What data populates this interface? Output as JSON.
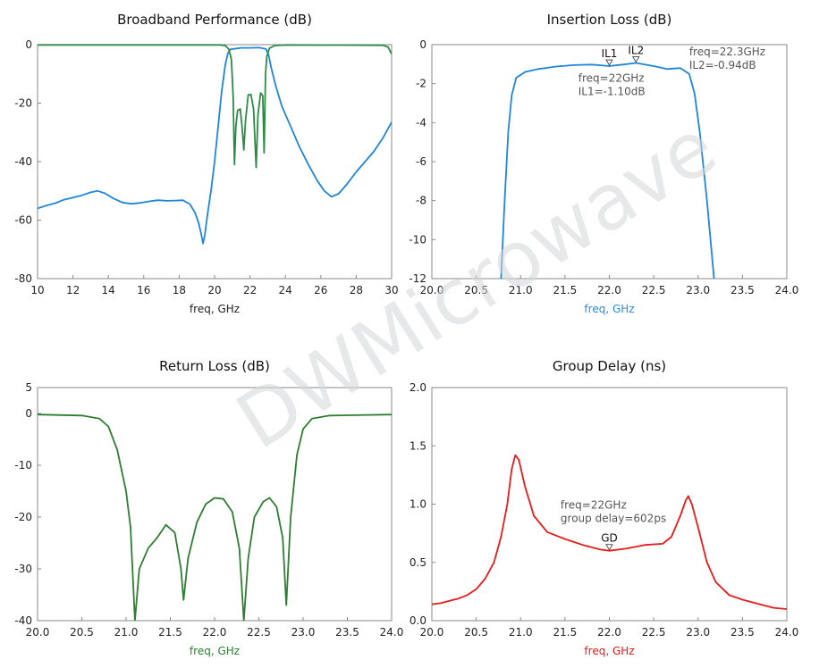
{
  "watermark": {
    "text": "DWMicrowave"
  },
  "chart_data": [
    {
      "type": "line",
      "title": "Broadband Performance (dB)",
      "xlabel": "freq, GHz",
      "xlabel_color": "#222222",
      "xlim": [
        10,
        30
      ],
      "ylim": [
        -80,
        0
      ],
      "xticks": [
        10,
        12,
        14,
        16,
        18,
        20,
        22,
        24,
        26,
        28,
        30
      ],
      "yticks": [
        0,
        -20,
        -40,
        -60,
        -80
      ],
      "grid": false,
      "series": [
        {
          "color": "#1f86d9",
          "points": [
            [
              10,
              -56
            ],
            [
              10.5,
              -55
            ],
            [
              11,
              -54.2
            ],
            [
              11.5,
              -53
            ],
            [
              12,
              -52.3
            ],
            [
              12.5,
              -51.5
            ],
            [
              13,
              -50.5
            ],
            [
              13.4,
              -50
            ],
            [
              13.8,
              -50.8
            ],
            [
              14.3,
              -52.6
            ],
            [
              14.8,
              -54
            ],
            [
              15.3,
              -54.4
            ],
            [
              15.8,
              -54.1
            ],
            [
              16.3,
              -53.6
            ],
            [
              16.8,
              -53.2
            ],
            [
              17.3,
              -53.4
            ],
            [
              17.8,
              -53.3
            ],
            [
              18.2,
              -53.2
            ],
            [
              18.6,
              -54.5
            ],
            [
              18.9,
              -57.5
            ],
            [
              19.1,
              -61
            ],
            [
              19.25,
              -65
            ],
            [
              19.35,
              -68
            ],
            [
              19.45,
              -65
            ],
            [
              19.6,
              -58
            ],
            [
              19.8,
              -50
            ],
            [
              20.0,
              -40
            ],
            [
              20.2,
              -28
            ],
            [
              20.4,
              -16
            ],
            [
              20.6,
              -7
            ],
            [
              20.75,
              -3
            ],
            [
              20.9,
              -1.6
            ],
            [
              21.5,
              -1.1
            ],
            [
              22.0,
              -1.1
            ],
            [
              22.5,
              -1.0
            ],
            [
              22.9,
              -1.5
            ],
            [
              23.05,
              -3.5
            ],
            [
              23.2,
              -8
            ],
            [
              23.45,
              -14
            ],
            [
              23.8,
              -21
            ],
            [
              24.3,
              -28
            ],
            [
              24.8,
              -35
            ],
            [
              25.3,
              -41
            ],
            [
              25.8,
              -46.5
            ],
            [
              26.2,
              -50
            ],
            [
              26.6,
              -52
            ],
            [
              27.0,
              -51
            ],
            [
              27.5,
              -47.5
            ],
            [
              28.0,
              -43.5
            ],
            [
              28.5,
              -40
            ],
            [
              29.0,
              -36.5
            ],
            [
              29.5,
              -32
            ],
            [
              30,
              -26.5
            ]
          ]
        },
        {
          "color": "#2e8b45",
          "points": [
            [
              10,
              -0.1
            ],
            [
              20.3,
              -0.1
            ],
            [
              20.6,
              -0.3
            ],
            [
              20.8,
              -1.5
            ],
            [
              20.95,
              -5
            ],
            [
              21.05,
              -18
            ],
            [
              21.12,
              -41
            ],
            [
              21.2,
              -28
            ],
            [
              21.3,
              -22.5
            ],
            [
              21.45,
              -22
            ],
            [
              21.55,
              -28
            ],
            [
              21.65,
              -36
            ],
            [
              21.75,
              -26
            ],
            [
              21.9,
              -17.2
            ],
            [
              22.05,
              -17
            ],
            [
              22.2,
              -22
            ],
            [
              22.35,
              -42
            ],
            [
              22.45,
              -24
            ],
            [
              22.6,
              -16.5
            ],
            [
              22.72,
              -17.5
            ],
            [
              22.8,
              -37
            ],
            [
              22.88,
              -10
            ],
            [
              22.95,
              -4
            ],
            [
              23.1,
              -1.2
            ],
            [
              23.4,
              -0.3
            ],
            [
              24,
              -0.1
            ],
            [
              29.5,
              -0.2
            ],
            [
              29.8,
              -0.8
            ],
            [
              30,
              -3.2
            ]
          ]
        }
      ]
    },
    {
      "type": "line",
      "title": "Insertion Loss (dB)",
      "xlabel": "freq, GHz",
      "xlabel_color": "#2b8be0",
      "xlim": [
        20.0,
        24.0
      ],
      "ylim": [
        -12,
        0
      ],
      "xticks": [
        20.0,
        20.5,
        21.0,
        21.5,
        22.0,
        22.5,
        23.0,
        23.5,
        24.0
      ],
      "yticks": [
        0,
        -2,
        -4,
        -6,
        -8,
        -10,
        -12
      ],
      "xtick_decimals": 1,
      "grid": false,
      "series": [
        {
          "color": "#1f86d9",
          "points": [
            [
              20.78,
              -12
            ],
            [
              20.82,
              -8
            ],
            [
              20.86,
              -4.5
            ],
            [
              20.9,
              -2.6
            ],
            [
              20.95,
              -1.7
            ],
            [
              21.05,
              -1.4
            ],
            [
              21.2,
              -1.25
            ],
            [
              21.4,
              -1.12
            ],
            [
              21.6,
              -1.05
            ],
            [
              21.8,
              -1.02
            ],
            [
              22.0,
              -1.1
            ],
            [
              22.15,
              -1.02
            ],
            [
              22.3,
              -0.94
            ],
            [
              22.5,
              -1.1
            ],
            [
              22.65,
              -1.25
            ],
            [
              22.8,
              -1.2
            ],
            [
              22.9,
              -1.5
            ],
            [
              22.96,
              -2.5
            ],
            [
              23.02,
              -4.5
            ],
            [
              23.1,
              -8
            ],
            [
              23.18,
              -12
            ]
          ]
        }
      ],
      "markers": [
        {
          "label": "IL1",
          "x": 22.0,
          "y": -1.1,
          "text": [
            "freq=22GHz",
            "IL1=-1.10dB"
          ],
          "text_x": 21.65,
          "text_y": -1.9
        },
        {
          "label": "IL2",
          "x": 22.3,
          "y": -0.94,
          "text": [
            "freq=22.3GHz",
            "IL2=-0.94dB"
          ],
          "text_x": 22.9,
          "text_y": -0.55
        }
      ]
    },
    {
      "type": "line",
      "title": "Return Loss (dB)",
      "xlabel": "freq, GHz",
      "xlabel_color": "#2e7d32",
      "xlim": [
        20.0,
        24.0
      ],
      "ylim": [
        -40,
        5
      ],
      "xticks": [
        20.0,
        20.5,
        21.0,
        21.5,
        22.0,
        22.5,
        23.0,
        23.5,
        24.0
      ],
      "yticks": [
        5,
        0,
        -10,
        -20,
        -30,
        -40
      ],
      "xtick_decimals": 1,
      "grid": false,
      "series": [
        {
          "color": "#2e7d32",
          "points": [
            [
              20.0,
              -0.2
            ],
            [
              20.5,
              -0.4
            ],
            [
              20.7,
              -1
            ],
            [
              20.8,
              -2.5
            ],
            [
              20.9,
              -7
            ],
            [
              21.0,
              -15
            ],
            [
              21.05,
              -22
            ],
            [
              21.1,
              -40
            ],
            [
              21.15,
              -30
            ],
            [
              21.25,
              -26
            ],
            [
              21.35,
              -24
            ],
            [
              21.45,
              -21.5
            ],
            [
              21.55,
              -23
            ],
            [
              21.62,
              -30
            ],
            [
              21.65,
              -36
            ],
            [
              21.7,
              -28
            ],
            [
              21.8,
              -21
            ],
            [
              21.9,
              -17.5
            ],
            [
              22.0,
              -16.3
            ],
            [
              22.1,
              -16.5
            ],
            [
              22.2,
              -19
            ],
            [
              22.28,
              -26
            ],
            [
              22.33,
              -40
            ],
            [
              22.38,
              -28
            ],
            [
              22.45,
              -20
            ],
            [
              22.55,
              -17
            ],
            [
              22.62,
              -16.3
            ],
            [
              22.7,
              -18
            ],
            [
              22.77,
              -24
            ],
            [
              22.81,
              -37
            ],
            [
              22.86,
              -20
            ],
            [
              22.93,
              -8
            ],
            [
              23.0,
              -3
            ],
            [
              23.1,
              -1
            ],
            [
              23.3,
              -0.4
            ],
            [
              24.0,
              -0.2
            ]
          ]
        }
      ]
    },
    {
      "type": "line",
      "title": "Group Delay (ns)",
      "xlabel": "freq, GHz",
      "xlabel_color": "#e01b1b",
      "xlim": [
        20.0,
        24.0
      ],
      "ylim": [
        0.0,
        2.0
      ],
      "xticks": [
        20.0,
        20.5,
        21.0,
        21.5,
        22.0,
        22.5,
        23.0,
        23.5,
        24.0
      ],
      "yticks": [
        2.0,
        1.5,
        1.0,
        0.5,
        0.0
      ],
      "xtick_decimals": 1,
      "ytick_decimals": 1,
      "grid": false,
      "series": [
        {
          "color": "#e81a1a",
          "points": [
            [
              20.0,
              0.14
            ],
            [
              20.1,
              0.15
            ],
            [
              20.2,
              0.17
            ],
            [
              20.3,
              0.19
            ],
            [
              20.4,
              0.22
            ],
            [
              20.5,
              0.27
            ],
            [
              20.6,
              0.36
            ],
            [
              20.7,
              0.5
            ],
            [
              20.78,
              0.72
            ],
            [
              20.85,
              1.0
            ],
            [
              20.9,
              1.3
            ],
            [
              20.94,
              1.42
            ],
            [
              20.98,
              1.38
            ],
            [
              21.05,
              1.15
            ],
            [
              21.15,
              0.9
            ],
            [
              21.3,
              0.76
            ],
            [
              21.5,
              0.7
            ],
            [
              21.7,
              0.65
            ],
            [
              21.9,
              0.61
            ],
            [
              22.0,
              0.6
            ],
            [
              22.2,
              0.62
            ],
            [
              22.4,
              0.65
            ],
            [
              22.6,
              0.66
            ],
            [
              22.7,
              0.72
            ],
            [
              22.8,
              0.9
            ],
            [
              22.86,
              1.03
            ],
            [
              22.89,
              1.07
            ],
            [
              22.93,
              1.0
            ],
            [
              23.0,
              0.8
            ],
            [
              23.1,
              0.5
            ],
            [
              23.2,
              0.33
            ],
            [
              23.35,
              0.22
            ],
            [
              23.5,
              0.18
            ],
            [
              23.7,
              0.14
            ],
            [
              23.85,
              0.11
            ],
            [
              24.0,
              0.1
            ]
          ]
        }
      ],
      "markers": [
        {
          "label": "GD",
          "x": 22.0,
          "y": 0.6,
          "text": [
            "freq=22GHz",
            "group delay=602ps"
          ],
          "text_x": 21.45,
          "text_y": 0.96
        }
      ]
    }
  ]
}
